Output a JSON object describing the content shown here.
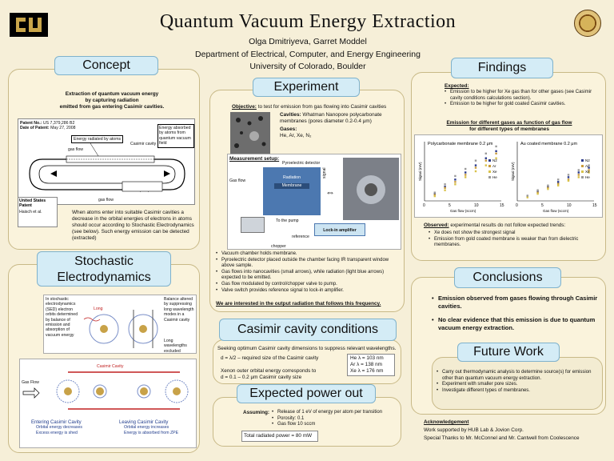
{
  "header": {
    "title": "Quantum Vacuum Energy Extraction",
    "authors": "Olga Dmitriyeva, Garret Moddel",
    "dept": "Department of Electrical, Computer, and Energy Engineering",
    "univ": "University of Colorado, Boulder"
  },
  "concept": {
    "heading": "Concept",
    "intro": [
      "Extraction of quantum vacuum energy",
      "by capturing radiation",
      "emitted from gas entering Casimir cavities."
    ],
    "patent_no": "Patent No.:",
    "patent_no_val": "US 7,379,286 B2",
    "patent_date": "Date of Patent:",
    "patent_date_val": "May 27, 2008",
    "diagram_energy_radiated": "Energy radiated by atoms",
    "diagram_energy_absorbed": "Energy absorbed by atoms from quantum vacuum field",
    "diagram_casimir": "Casimir cavity",
    "diagram_gas_flow_top": "gas flow",
    "diagram_gas_flow_bottom": "gas flow",
    "diagram_pump": "pump",
    "patent_label": "United States Patent",
    "patent_author": "Haisch et al.",
    "body": "When atoms enter into suitable Casimir cavities a decrease in the orbital energies of electrons in atoms should occur according to Stochastic Electrodynamics (see below). Such energy emission can be detected (extracted)"
  },
  "sed": {
    "heading": "Stochastic Electrodynamics",
    "left_text": "In stochastic electrodynamics (SED) electron orbits determined by balance of emission and absorption of vacuum energy",
    "right_text": "Balance altered by suppressing long wavelength modes in a Casimir cavity",
    "long": "Long",
    "long_wl": "Long wavelengths excluded",
    "gas_flow": "Gas Flow",
    "casimir_cavity": "Casimir Cavity",
    "entering_title": "Entering Casimir Cavity",
    "entering_items": [
      "Orbital energy decreases",
      "Excess energy is shed"
    ],
    "leaving_title": "Leaving Casimir Cavity",
    "leaving_items": [
      "Orbital energy increases",
      "Energy is absorbed from ZPE"
    ]
  },
  "experiment": {
    "heading": "Experiment",
    "objective_label": "Objective:",
    "objective_text": "to test for emission from gas flowing into Casimir cavities",
    "cavities_label": "Cavities:",
    "cavities_text": "Whatman Nanopore polycarbonate membranes (pores diameter 0.2-0.4 μm)",
    "gases_label": "Gases:",
    "gases_text": "He, Ar, Xe, N₂",
    "setup_label": "Measurement setup:",
    "pyro": "Pyroelectric detector",
    "radiation": "Radiation",
    "membrane": "Membrane",
    "gas_flow": "Gas flow",
    "signal": "signal",
    "to_pump": "To the pump",
    "reference": "reference",
    "chopper": "chopper",
    "lockin": "Lock-in amplifier",
    "bullets": [
      "Vacuum chamber holds membrane.",
      "Pyroelectric detector placed outside the chamber facing IR transparent window above sample.",
      "Gas flows into nanocavities (small arrows), while radiation (light blue arrows) expected to be emitted.",
      "Gas flow modulated by control/chopper valve to pump.",
      "Valve switch provides reference signal to lock-in amplifier."
    ],
    "footer": "We are interested in the output radiation that follows this frequency."
  },
  "casimir": {
    "heading": "Casimir cavity conditions",
    "line1": "Seeking optimum Casimir cavity dimensions to suppress relevant wavelengths.",
    "line2": "d = λ/2 – required size of the Casimir cavity",
    "line3": "Xenon outer orbital energy corresponds to",
    "line4": "d = 0.1 – 0.2 μm Casimir cavity size",
    "he": "He λ = 103 nm",
    "ar": "Ar λ = 138 nm",
    "xe": "Xe λ = 176 nm"
  },
  "power": {
    "heading": "Expected power out",
    "assuming": "Assuming:",
    "items": [
      "Release of 1 eV of energy per atom per transition",
      "Porosity: 0.1",
      "Gas flow 10 sccm"
    ],
    "total": "Total radiated power = 80 mW"
  },
  "findings": {
    "heading": "Findings",
    "expected_label": "Expected:",
    "expected_items": [
      "Emission to be higher for Xe gas than for other gases (see Casimir cavity conditions calculations section).",
      "Emission to be higher for gold coated Casimir cavities."
    ],
    "chart_title_1": "Emission for different gases as function of gas flow",
    "chart_title_2": "for different types of membranes",
    "observed_label": "Observed:",
    "observed_text": "experimental results do not follow expected trends:",
    "observed_items": [
      "Xe does not show the strongest signal",
      "Emission from gold coated membrane is weaker than from dielectric membranes."
    ]
  },
  "conclusions": {
    "heading": "Conclusions",
    "items": [
      "Emission observed from gases flowing through Casimir cavities.",
      "No clear evidence that this emission is due to quantum vacuum energy extraction."
    ]
  },
  "future": {
    "heading": "Future Work",
    "items": [
      "Carry out thermodynamic analysis to determine source(s) for emission other than quantum vacuum energy extraction.",
      "Experiment with smaller pore sizes.",
      "Investigate different types of membranes."
    ]
  },
  "ack": {
    "heading": "Acknowledgement",
    "line1": "Work supported by HUB Lab & Jovion Corp.",
    "line2": "Special Thanks to Mr. McConnel and Mr. Cantwell from Coolescence"
  },
  "chart_data": [
    {
      "type": "scatter",
      "title": "Polycarbonate membrane 0.2 μm",
      "xlabel": "Gas flow (sccm)",
      "ylabel": "Signal (mV)",
      "xlim": [
        0,
        15
      ],
      "xticks": [
        "0",
        "5",
        "10",
        "15"
      ],
      "series": [
        {
          "name": "N2",
          "color": "#2b3a8c",
          "points": [
            [
              2,
              0.3
            ],
            [
              4,
              0.6
            ],
            [
              6,
              0.9
            ],
            [
              8,
              1.2
            ],
            [
              10,
              1.5
            ],
            [
              12,
              1.8
            ],
            [
              14,
              2.1
            ]
          ]
        },
        {
          "name": "Ar",
          "color": "#c99b3a",
          "points": [
            [
              2,
              0.25
            ],
            [
              4,
              0.55
            ],
            [
              6,
              0.8
            ],
            [
              8,
              1.1
            ],
            [
              10,
              1.4
            ],
            [
              12,
              1.7
            ],
            [
              14,
              2.0
            ]
          ]
        },
        {
          "name": "Xe",
          "color": "#d9c24a",
          "points": [
            [
              2,
              0.2
            ],
            [
              4,
              0.45
            ],
            [
              6,
              0.7
            ],
            [
              8,
              1.0
            ],
            [
              10,
              1.25
            ],
            [
              12,
              1.5
            ],
            [
              14,
              1.8
            ]
          ]
        },
        {
          "name": "He",
          "color": "#9a9a9a",
          "points": [
            [
              2,
              0.35
            ],
            [
              4,
              0.7
            ],
            [
              6,
              1.05
            ],
            [
              8,
              1.35
            ],
            [
              10,
              1.7
            ],
            [
              12,
              2.0
            ],
            [
              14,
              2.3
            ]
          ]
        }
      ]
    },
    {
      "type": "scatter",
      "title": "Au coated membrane 0.2 μm",
      "xlabel": "Gas flow (sccm)",
      "ylabel": "Signal (mV)",
      "xlim": [
        0,
        15
      ],
      "xticks": [
        "0",
        "5",
        "10",
        "15"
      ],
      "series": [
        {
          "name": "N2",
          "color": "#2b3a8c",
          "points": [
            [
              2,
              0.2
            ],
            [
              4,
              0.4
            ],
            [
              6,
              0.6
            ],
            [
              8,
              0.8
            ],
            [
              10,
              1.0
            ],
            [
              12,
              1.2
            ],
            [
              14,
              1.4
            ]
          ]
        },
        {
          "name": "Ar",
          "color": "#c99b3a",
          "points": [
            [
              2,
              0.18
            ],
            [
              4,
              0.35
            ],
            [
              6,
              0.55
            ],
            [
              8,
              0.72
            ],
            [
              10,
              0.9
            ],
            [
              12,
              1.1
            ],
            [
              14,
              1.3
            ]
          ]
        },
        {
          "name": "Xe",
          "color": "#d9c24a",
          "points": [
            [
              2,
              0.15
            ],
            [
              4,
              0.3
            ],
            [
              6,
              0.5
            ],
            [
              8,
              0.65
            ],
            [
              10,
              0.85
            ],
            [
              12,
              1.0
            ],
            [
              14,
              1.2
            ]
          ]
        },
        {
          "name": "He",
          "color": "#9a9a9a",
          "points": [
            [
              2,
              0.22
            ],
            [
              4,
              0.45
            ],
            [
              6,
              0.65
            ],
            [
              8,
              0.9
            ],
            [
              10,
              1.1
            ],
            [
              12,
              1.3
            ],
            [
              14,
              1.5
            ]
          ]
        }
      ]
    }
  ]
}
